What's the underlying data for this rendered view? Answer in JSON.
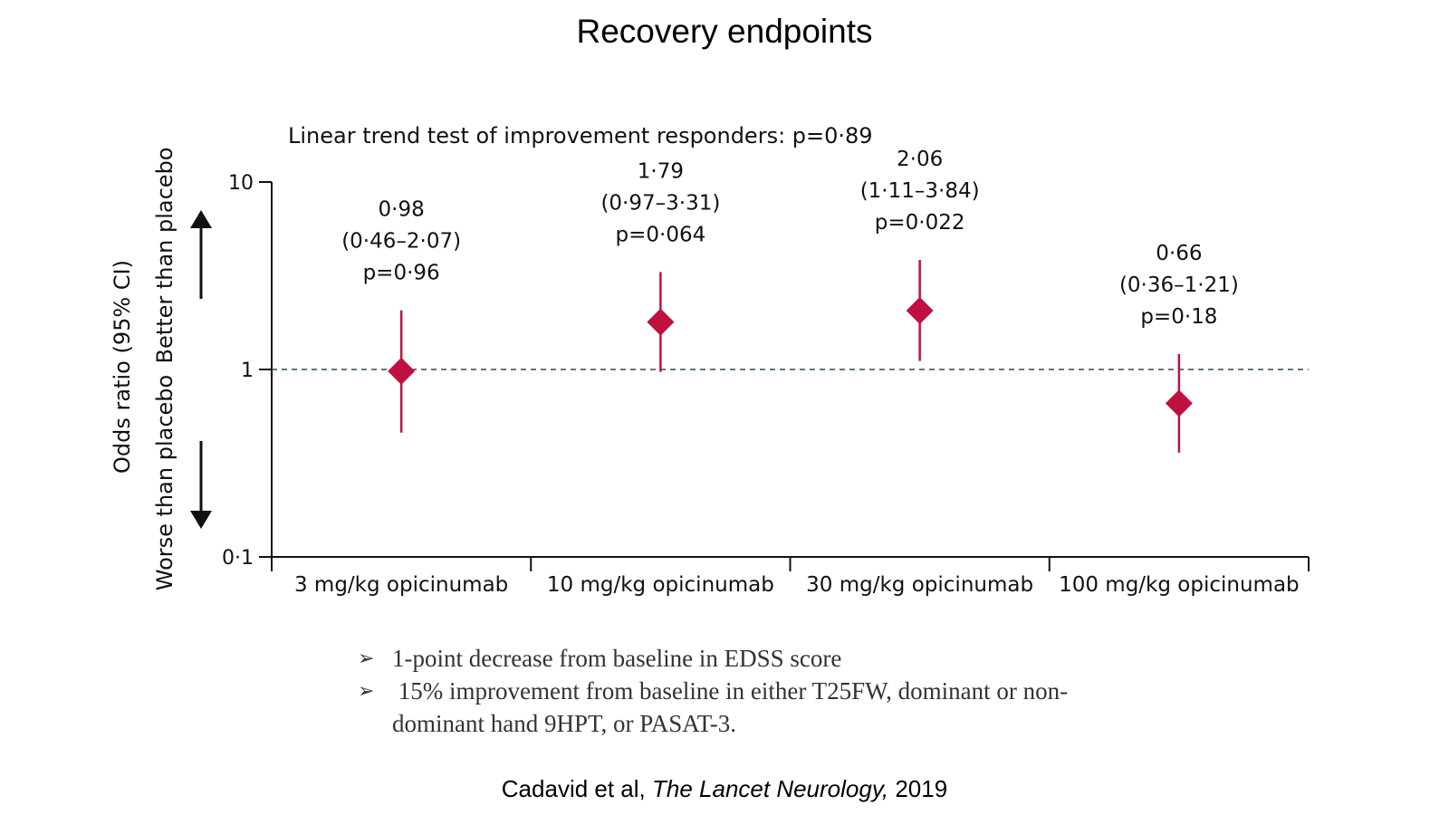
{
  "slide": {
    "title": "Recovery endpoints",
    "bullets": [
      "1-point decrease from baseline in EDSS score",
      " 15% improvement from baseline in either T25FW, dominant or non-dominant hand 9HPT, or PASAT-3."
    ],
    "citation": {
      "authors": "Cadavid et al, ",
      "journal": "The Lancet Neurology,",
      "year": " 2019"
    }
  },
  "chart_data": {
    "type": "scatter",
    "subtitle": "Linear trend test of improvement responders: p=0·89",
    "ylabel": "Odds ratio (95% CI)",
    "ylabel_better": "Better than placebo",
    "ylabel_worse": "Worse than placebo",
    "yscale": "log",
    "ylim": [
      0.1,
      10
    ],
    "yticks": [
      {
        "value": 10,
        "label": "10"
      },
      {
        "value": 1,
        "label": "1"
      },
      {
        "value": 0.1,
        "label": "0·1"
      }
    ],
    "reference_line": 1,
    "categories": [
      "3 mg/kg opicinumab",
      "10 mg/kg opicinumab",
      "30 mg/kg opicinumab",
      "100 mg/kg opicinumab"
    ],
    "points": [
      {
        "or": 0.98,
        "lo": 0.46,
        "hi": 2.07,
        "or_label": "0·98",
        "ci_label": "(0·46–2·07)",
        "p_label": "p=0·96"
      },
      {
        "or": 1.79,
        "lo": 0.97,
        "hi": 3.31,
        "or_label": "1·79",
        "ci_label": "(0·97–3·31)",
        "p_label": "p=0·064"
      },
      {
        "or": 2.06,
        "lo": 1.11,
        "hi": 3.84,
        "or_label": "2·06",
        "ci_label": "(1·11–3·84)",
        "p_label": "p=0·022"
      },
      {
        "or": 0.66,
        "lo": 0.36,
        "hi": 1.21,
        "or_label": "0·66",
        "ci_label": "(0·36–1·21)",
        "p_label": "p=0·18"
      }
    ],
    "marker_color": "#c0103f",
    "reference_line_color": "#2a4a5e",
    "grid": false
  }
}
